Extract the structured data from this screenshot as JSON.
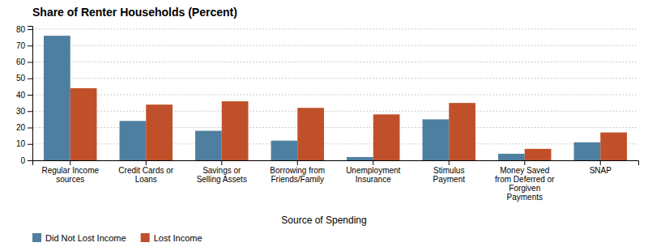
{
  "chart_data": {
    "type": "bar",
    "title": "Share of Renter Households (Percent)",
    "xlabel": "Source of Spending",
    "categories": [
      "Regular Income\nsources",
      "Credit Cards or\nLoans",
      "Savings or\nSelling Assets",
      "Borrowing from\nFriends/Family",
      "Unemployment\nInsurance",
      "Stimulus\nPayment",
      "Money Saved\nfrom Deferred or\nForgiven\nPayments",
      "SNAP"
    ],
    "series": [
      {
        "name": "Did Not Lost Income",
        "color": "#4e7fa0",
        "values": [
          76,
          24,
          18,
          12,
          2,
          25,
          4,
          11
        ]
      },
      {
        "name": "Lost Income",
        "color": "#c0502a",
        "values": [
          44,
          34,
          36,
          32,
          28,
          35,
          7,
          17
        ]
      }
    ],
    "ylim": [
      0,
      82
    ],
    "yticks": [
      0,
      10,
      20,
      30,
      40,
      50,
      60,
      70,
      80
    ],
    "grid": true,
    "legend": "bottom-left"
  }
}
